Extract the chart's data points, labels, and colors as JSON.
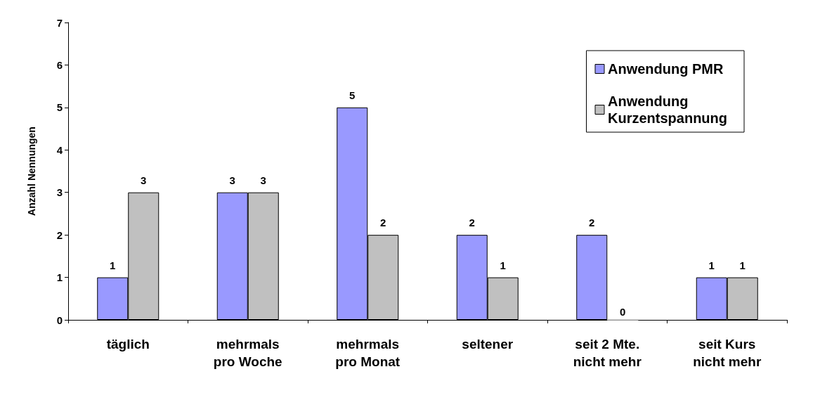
{
  "chart_data": {
    "type": "bar",
    "ylabel": "Anzahl Nennungen",
    "categories": [
      "täglich",
      "mehrmals\npro Woche",
      "mehrmals\npro Monat",
      "seltener",
      "seit 2 Mte.\nnicht mehr",
      "seit Kurs\nnicht mehr"
    ],
    "series": [
      {
        "name": "Anwendung PMR",
        "color": "#9999ff",
        "values": [
          1,
          3,
          5,
          2,
          2,
          1
        ]
      },
      {
        "name": "Anwendung\nKurzentspannung",
        "color": "#c0c0c0",
        "values": [
          3,
          3,
          2,
          1,
          0,
          1
        ]
      }
    ],
    "ylim": [
      0,
      7
    ],
    "yticks": [
      0,
      1,
      2,
      3,
      4,
      5,
      6,
      7
    ],
    "grid": false,
    "data_labels": true,
    "legend": "top right"
  }
}
